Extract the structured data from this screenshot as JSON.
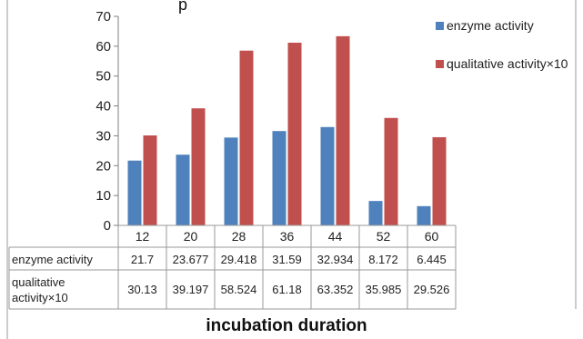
{
  "chart_data": {
    "type": "bar",
    "title": "",
    "xlabel": "incubation duration",
    "ylabel": "",
    "ylim": [
      0,
      70
    ],
    "yticks": [
      0,
      10,
      20,
      30,
      40,
      50,
      60,
      70
    ],
    "categories": [
      "12",
      "20",
      "28",
      "36",
      "44",
      "52",
      "60"
    ],
    "series": [
      {
        "name": "enzyme activity",
        "color": "#4F81BD",
        "values": [
          21.7,
          23.677,
          29.418,
          31.59,
          32.934,
          8.172,
          6.445
        ],
        "table_labels": [
          "21.7",
          "23.677",
          "29.418",
          "31.59",
          "32.934",
          "8.172",
          "6.445"
        ]
      },
      {
        "name": "qualitative activity×10",
        "table_row_label": [
          "qualitative",
          "activity×10"
        ],
        "color": "#C0504D",
        "values": [
          30.13,
          39.197,
          58.524,
          61.18,
          63.352,
          35.985,
          29.526
        ],
        "table_labels": [
          "30.13",
          "39.197",
          "58.524",
          "61.18",
          "63.352",
          "35.985",
          "29.526"
        ]
      }
    ],
    "grid": false,
    "legend_position": "right",
    "data_table": true
  },
  "top_caption_fragment": "p"
}
